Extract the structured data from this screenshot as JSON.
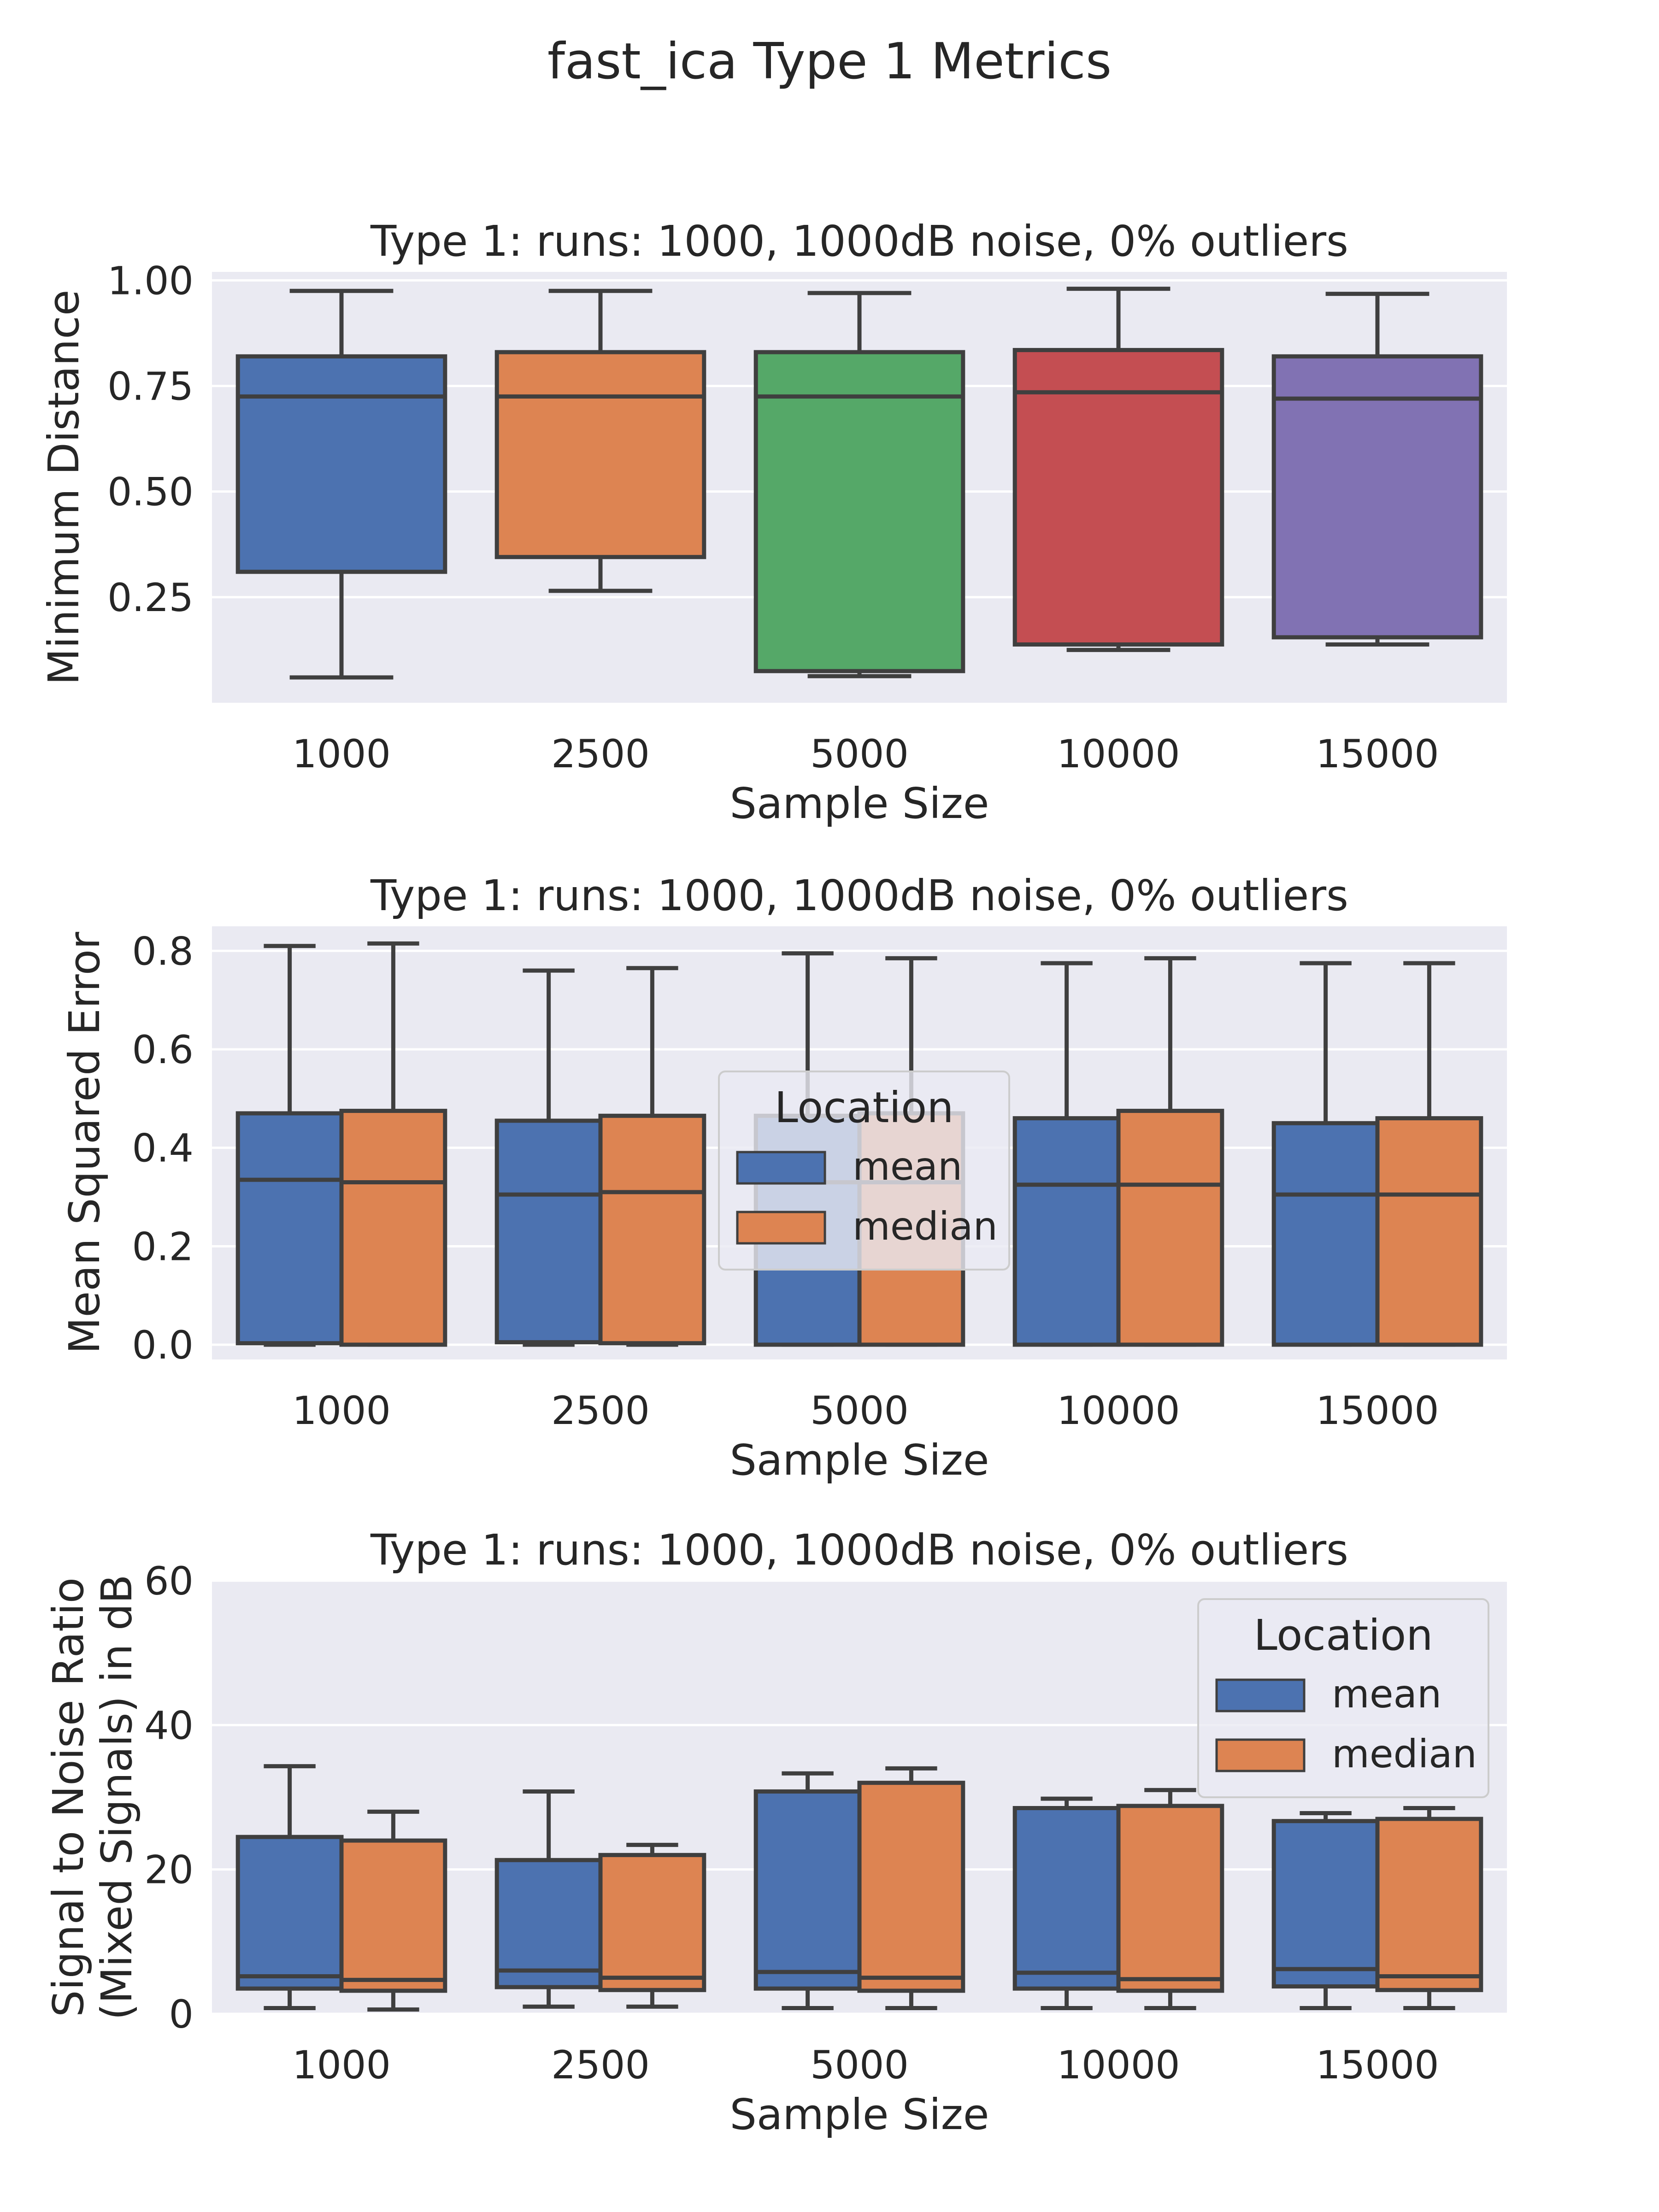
{
  "figure": {
    "title": "fast_ica Type 1 Metrics"
  },
  "chart_data": [
    {
      "type": "box",
      "title": "Type 1:  runs: 1000, 1000dB noise, 0% outliers",
      "xlabel": "Sample Size",
      "ylabel": "Minimum Distance",
      "ylim": [
        0.0,
        1.02
      ],
      "yticks": [
        "0.25",
        "0.50",
        "0.75",
        "1.00"
      ],
      "yticks_values": [
        0.25,
        0.5,
        0.75,
        1.0
      ],
      "categories": [
        "1000",
        "2500",
        "5000",
        "10000",
        "15000"
      ],
      "series": [
        {
          "color_per_category": [
            "#4c72b0",
            "#dd8452",
            "#55a868",
            "#c44e52",
            "#8172b3"
          ],
          "boxes": [
            {
              "whislo": 0.06,
              "q1": 0.31,
              "med": 0.725,
              "q3": 0.82,
              "whishi": 0.975
            },
            {
              "whislo": 0.265,
              "q1": 0.345,
              "med": 0.725,
              "q3": 0.83,
              "whishi": 0.975
            },
            {
              "whislo": 0.063,
              "q1": 0.075,
              "med": 0.725,
              "q3": 0.83,
              "whishi": 0.97
            },
            {
              "whislo": 0.125,
              "q1": 0.138,
              "med": 0.735,
              "q3": 0.835,
              "whishi": 0.98
            },
            {
              "whislo": 0.138,
              "q1": 0.155,
              "med": 0.72,
              "q3": 0.82,
              "whishi": 0.968
            }
          ]
        }
      ],
      "grid": true
    },
    {
      "type": "box",
      "title": "Type 1:  runs: 1000, 1000dB noise, 0% outliers",
      "xlabel": "Sample Size",
      "ylabel": "Mean Squared Error",
      "ylim": [
        -0.03,
        0.85
      ],
      "yticks": [
        "0.0",
        "0.2",
        "0.4",
        "0.6",
        "0.8"
      ],
      "yticks_values": [
        0.0,
        0.2,
        0.4,
        0.6,
        0.8
      ],
      "categories": [
        "1000",
        "2500",
        "5000",
        "10000",
        "15000"
      ],
      "legend": {
        "title": "Location",
        "entries": [
          "mean",
          "median"
        ],
        "position": "center"
      },
      "series": [
        {
          "name": "mean",
          "color": "#4c72b0",
          "boxes": [
            {
              "whislo": 0.0,
              "q1": 0.003,
              "med": 0.335,
              "q3": 0.47,
              "whishi": 0.81
            },
            {
              "whislo": 0.0,
              "q1": 0.005,
              "med": 0.305,
              "q3": 0.455,
              "whishi": 0.76
            },
            {
              "whislo": 0.0,
              "q1": 0.0,
              "med": 0.33,
              "q3": 0.465,
              "whishi": 0.795
            },
            {
              "whislo": 0.0,
              "q1": 0.0,
              "med": 0.325,
              "q3": 0.46,
              "whishi": 0.775
            },
            {
              "whislo": 0.0,
              "q1": 0.0,
              "med": 0.305,
              "q3": 0.45,
              "whishi": 0.775
            }
          ]
        },
        {
          "name": "median",
          "color": "#dd8452",
          "boxes": [
            {
              "whislo": 0.0,
              "q1": 0.0,
              "med": 0.33,
              "q3": 0.475,
              "whishi": 0.815
            },
            {
              "whislo": 0.0,
              "q1": 0.003,
              "med": 0.31,
              "q3": 0.465,
              "whishi": 0.765
            },
            {
              "whislo": 0.0,
              "q1": 0.0,
              "med": 0.33,
              "q3": 0.47,
              "whishi": 0.785
            },
            {
              "whislo": 0.0,
              "q1": 0.0,
              "med": 0.325,
              "q3": 0.475,
              "whishi": 0.785
            },
            {
              "whislo": 0.0,
              "q1": 0.0,
              "med": 0.305,
              "q3": 0.46,
              "whishi": 0.775
            }
          ]
        }
      ],
      "grid": true
    },
    {
      "type": "box",
      "title": "Type 1:  runs: 1000, 1000dB noise, 0% outliers",
      "xlabel": "Sample Size",
      "ylabel": "Signal to Noise Ratio\n(Mixed Signals) in dB",
      "ylabel_lines": [
        "Signal to Noise Ratio",
        "(Mixed Signals) in dB"
      ],
      "ylim": [
        0,
        60
      ],
      "yticks": [
        "0",
        "20",
        "40",
        "60"
      ],
      "yticks_values": [
        0,
        20,
        40,
        60
      ],
      "categories": [
        "1000",
        "2500",
        "5000",
        "10000",
        "15000"
      ],
      "legend": {
        "title": "Location",
        "entries": [
          "mean",
          "median"
        ],
        "position": "upper right"
      },
      "series": [
        {
          "name": "mean",
          "color": "#4c72b0",
          "boxes": [
            {
              "whislo": 0.8,
              "q1": 3.5,
              "med": 5.2,
              "q3": 24.5,
              "whishi": 34.3
            },
            {
              "whislo": 1.0,
              "q1": 3.7,
              "med": 6.0,
              "q3": 21.3,
              "whishi": 30.8
            },
            {
              "whislo": 0.8,
              "q1": 3.5,
              "med": 5.8,
              "q3": 30.8,
              "whishi": 33.3
            },
            {
              "whislo": 0.8,
              "q1": 3.5,
              "med": 5.7,
              "q3": 28.5,
              "whishi": 29.8
            },
            {
              "whislo": 0.8,
              "q1": 3.8,
              "med": 6.2,
              "q3": 26.7,
              "whishi": 27.8
            }
          ]
        },
        {
          "name": "median",
          "color": "#dd8452",
          "boxes": [
            {
              "whislo": 0.6,
              "q1": 3.2,
              "med": 4.7,
              "q3": 24.0,
              "whishi": 28.0
            },
            {
              "whislo": 1.0,
              "q1": 3.3,
              "med": 5.0,
              "q3": 22.0,
              "whishi": 23.4
            },
            {
              "whislo": 0.8,
              "q1": 3.2,
              "med": 5.0,
              "q3": 32.0,
              "whishi": 34.0
            },
            {
              "whislo": 0.8,
              "q1": 3.2,
              "med": 4.8,
              "q3": 28.8,
              "whishi": 31.0
            },
            {
              "whislo": 0.8,
              "q1": 3.3,
              "med": 5.2,
              "q3": 27.0,
              "whishi": 28.5
            }
          ]
        }
      ],
      "grid": true
    }
  ]
}
